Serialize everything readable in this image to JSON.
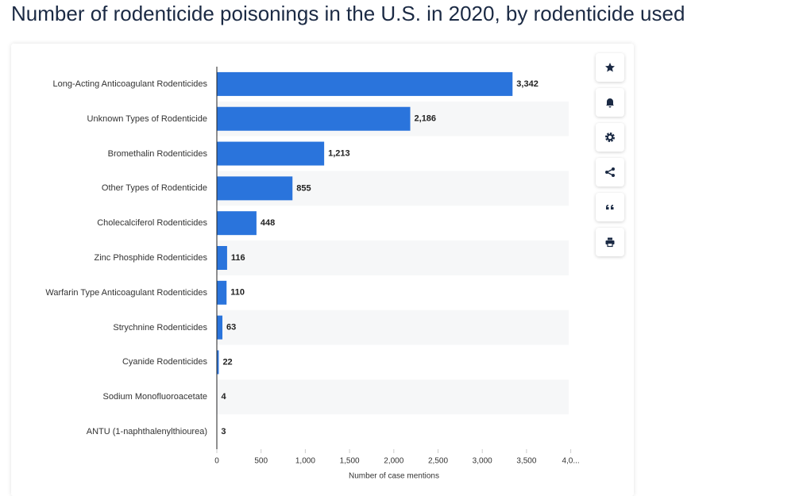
{
  "chart_data": {
    "type": "bar",
    "orientation": "horizontal",
    "title": "Number of rodenticide poisonings in the U.S. in 2020, by rodenticide used",
    "x_label": "Number of case mentions",
    "categories": [
      "Long-Acting Anticoagulant Rodenticides",
      "Unknown Types of Rodenticide",
      "Bromethalin Rodenticides",
      "Other Types of Rodenticide",
      "Cholecalciferol Rodenticides",
      "Zinc Phosphide Rodenticides",
      "Warfarin Type Anticoagulant Rodenticides",
      "Strychnine Rodenticides",
      "Cyanide Rodenticides",
      "Sodium Monofluoroacetate",
      "ANTU (1-naphthalenylthiourea)"
    ],
    "values": [
      3342,
      2186,
      1213,
      855,
      448,
      116,
      110,
      63,
      22,
      4,
      3
    ],
    "value_labels": [
      "3,342",
      "2,186",
      "1,213",
      "855",
      "448",
      "116",
      "110",
      "63",
      "22",
      "4",
      "3"
    ],
    "color": "#2a74dc",
    "xlim": [
      0,
      4000
    ],
    "xticks": [
      0,
      500,
      {
        "value": 1000,
        "label": "1,000"
      },
      {
        "value": 1500,
        "label": "1,500"
      },
      {
        "value": 2000,
        "label": "2,000"
      },
      {
        "value": 2500,
        "label": "2,500"
      },
      {
        "value": 3000,
        "label": "3,000"
      },
      {
        "value": 3500,
        "label": "3,500"
      },
      {
        "value": 4000,
        "label": "4,0..."
      }
    ]
  }
}
